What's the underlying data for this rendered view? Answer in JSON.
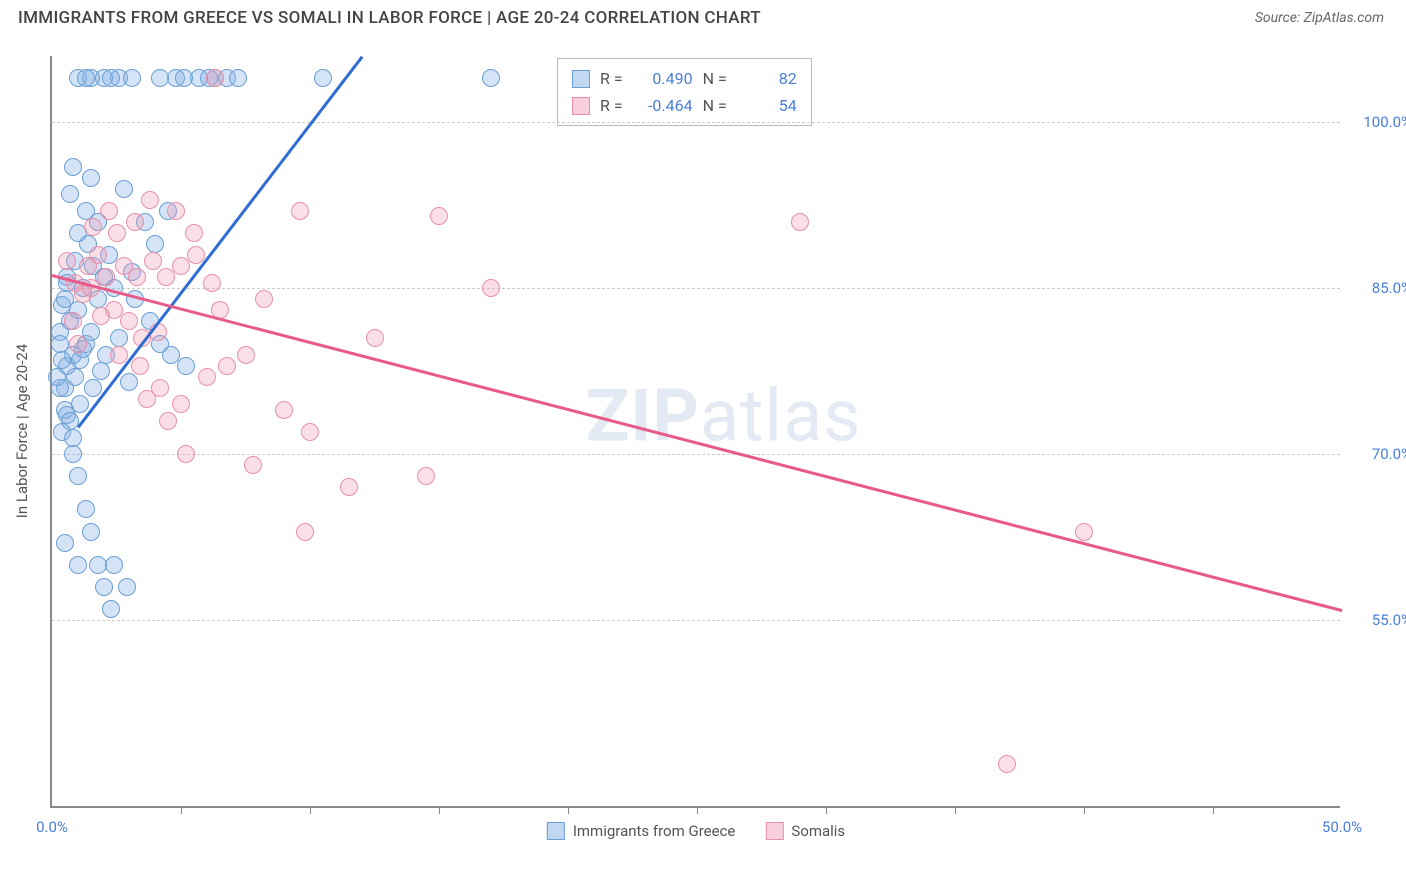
{
  "title": "IMMIGRANTS FROM GREECE VS SOMALI IN LABOR FORCE | AGE 20-24 CORRELATION CHART",
  "source": "Source: ZipAtlas.com",
  "watermark_bold": "ZIP",
  "watermark_light": "atlas",
  "chart": {
    "type": "scatter",
    "x_range": [
      0,
      50
    ],
    "y_range": [
      38,
      106
    ],
    "y_axis_title": "In Labor Force | Age 20-24",
    "y_ticks": [
      {
        "v": 55.0,
        "label": "55.0%"
      },
      {
        "v": 70.0,
        "label": "70.0%"
      },
      {
        "v": 85.0,
        "label": "85.0%"
      },
      {
        "v": 100.0,
        "label": "100.0%"
      }
    ],
    "x_tick_positions": [
      5,
      10,
      15,
      20,
      25,
      30,
      35,
      40,
      45
    ],
    "x_labels": [
      {
        "v": 0,
        "label": "0.0%"
      },
      {
        "v": 50,
        "label": "50.0%"
      }
    ],
    "grid_color": "#cccccc",
    "axis_color": "#888888",
    "background_color": "#ffffff",
    "series": [
      {
        "name": "Immigrants from Greece",
        "color_fill": "rgba(134,175,230,0.35)",
        "color_stroke": "#6a9fd4",
        "trend_color": "#2f6cd4",
        "R": "0.490",
        "N": "82",
        "trend": {
          "x1": 1.0,
          "y1": 72.5,
          "x2": 12.0,
          "y2": 106.0
        },
        "points": [
          [
            0.6,
            78
          ],
          [
            0.5,
            76
          ],
          [
            0.8,
            79
          ],
          [
            1.1,
            78.5
          ],
          [
            0.9,
            77
          ],
          [
            1.3,
            80
          ],
          [
            1.5,
            81
          ],
          [
            0.7,
            82
          ],
          [
            1.0,
            83
          ],
          [
            1.8,
            84
          ],
          [
            1.2,
            85
          ],
          [
            0.6,
            86
          ],
          [
            1.6,
            87
          ],
          [
            2.0,
            86
          ],
          [
            2.4,
            85
          ],
          [
            2.2,
            88
          ],
          [
            1.4,
            89
          ],
          [
            1.0,
            90
          ],
          [
            1.8,
            91
          ],
          [
            0.8,
            96
          ],
          [
            0.5,
            62
          ],
          [
            3.1,
            86.5
          ],
          [
            0.5,
            74
          ],
          [
            0.6,
            73.5
          ],
          [
            0.7,
            73
          ],
          [
            0.4,
            72
          ],
          [
            0.8,
            70
          ],
          [
            1.0,
            68
          ],
          [
            1.3,
            65
          ],
          [
            1.5,
            63
          ],
          [
            1.8,
            60
          ],
          [
            2.0,
            58
          ],
          [
            2.4,
            60
          ],
          [
            1.0,
            60
          ],
          [
            2.6,
            104
          ],
          [
            3.1,
            104
          ],
          [
            4.8,
            104
          ],
          [
            4.2,
            104
          ],
          [
            6.3,
            104
          ],
          [
            6.1,
            104
          ],
          [
            6.8,
            104
          ],
          [
            7.2,
            104
          ],
          [
            10.5,
            104
          ],
          [
            17.0,
            104
          ],
          [
            2.0,
            104
          ],
          [
            2.3,
            104
          ],
          [
            1.5,
            104
          ],
          [
            1.0,
            104
          ],
          [
            1.3,
            104
          ],
          [
            2.8,
            94
          ],
          [
            4.5,
            92
          ],
          [
            3.6,
            91
          ],
          [
            4.0,
            89
          ],
          [
            3.2,
            84
          ],
          [
            3.8,
            82
          ],
          [
            4.2,
            80
          ],
          [
            3.0,
            76.5
          ],
          [
            4.6,
            79
          ],
          [
            5.2,
            78
          ],
          [
            1.2,
            79.5
          ],
          [
            0.3,
            81
          ],
          [
            0.4,
            83.5
          ],
          [
            0.6,
            85.5
          ],
          [
            0.3,
            76
          ],
          [
            0.4,
            78.5
          ],
          [
            0.2,
            77
          ],
          [
            0.3,
            80
          ],
          [
            1.6,
            76
          ],
          [
            1.9,
            77.5
          ],
          [
            2.6,
            80.5
          ],
          [
            2.1,
            79
          ],
          [
            0.8,
            71.5
          ],
          [
            1.1,
            74.5
          ],
          [
            0.5,
            84
          ],
          [
            0.9,
            87.5
          ],
          [
            1.3,
            92
          ],
          [
            0.7,
            93.5
          ],
          [
            1.5,
            95
          ],
          [
            5.7,
            104
          ],
          [
            5.1,
            104
          ],
          [
            2.9,
            58
          ],
          [
            2.3,
            56
          ]
        ]
      },
      {
        "name": "Somalis",
        "color_fill": "rgba(240,150,175,0.3)",
        "color_stroke": "#e890aa",
        "trend_color": "#e85a8a",
        "R": "-0.464",
        "N": "54",
        "trend": {
          "x1": 0.0,
          "y1": 86.3,
          "x2": 50.0,
          "y2": 56.0
        },
        "points": [
          [
            1.5,
            85
          ],
          [
            2.1,
            86
          ],
          [
            2.8,
            87
          ],
          [
            3.3,
            86
          ],
          [
            3.9,
            87.5
          ],
          [
            4.4,
            86
          ],
          [
            5.0,
            87
          ],
          [
            5.6,
            88
          ],
          [
            6.2,
            85.5
          ],
          [
            2.4,
            83
          ],
          [
            3.0,
            82
          ],
          [
            3.5,
            80.5
          ],
          [
            4.1,
            81
          ],
          [
            1.8,
            88
          ],
          [
            2.5,
            90
          ],
          [
            3.2,
            91
          ],
          [
            4.8,
            92
          ],
          [
            9.6,
            92
          ],
          [
            15.0,
            91.5
          ],
          [
            17.0,
            85
          ],
          [
            29.0,
            91
          ],
          [
            6.5,
            83
          ],
          [
            3.7,
            75
          ],
          [
            4.5,
            73
          ],
          [
            5.2,
            70
          ],
          [
            6.0,
            77
          ],
          [
            6.8,
            78
          ],
          [
            7.5,
            79
          ],
          [
            8.2,
            84
          ],
          [
            9.0,
            74
          ],
          [
            10.0,
            72
          ],
          [
            11.5,
            67
          ],
          [
            7.8,
            69
          ],
          [
            14.5,
            68
          ],
          [
            9.8,
            63
          ],
          [
            40.0,
            63
          ],
          [
            37.0,
            42
          ],
          [
            1.2,
            84.5
          ],
          [
            1.9,
            82.5
          ],
          [
            2.6,
            79
          ],
          [
            3.4,
            78
          ],
          [
            4.2,
            76
          ],
          [
            5.0,
            74.5
          ],
          [
            0.8,
            82
          ],
          [
            1.0,
            80
          ],
          [
            1.4,
            87
          ],
          [
            5.5,
            90
          ],
          [
            6.3,
            104
          ],
          [
            0.6,
            87.5
          ],
          [
            0.9,
            85.5
          ],
          [
            2.2,
            92
          ],
          [
            3.8,
            93
          ],
          [
            1.6,
            90.5
          ],
          [
            12.5,
            80.5
          ]
        ]
      }
    ],
    "legend_stats_labels": {
      "R": "R =",
      "N": "N ="
    }
  }
}
